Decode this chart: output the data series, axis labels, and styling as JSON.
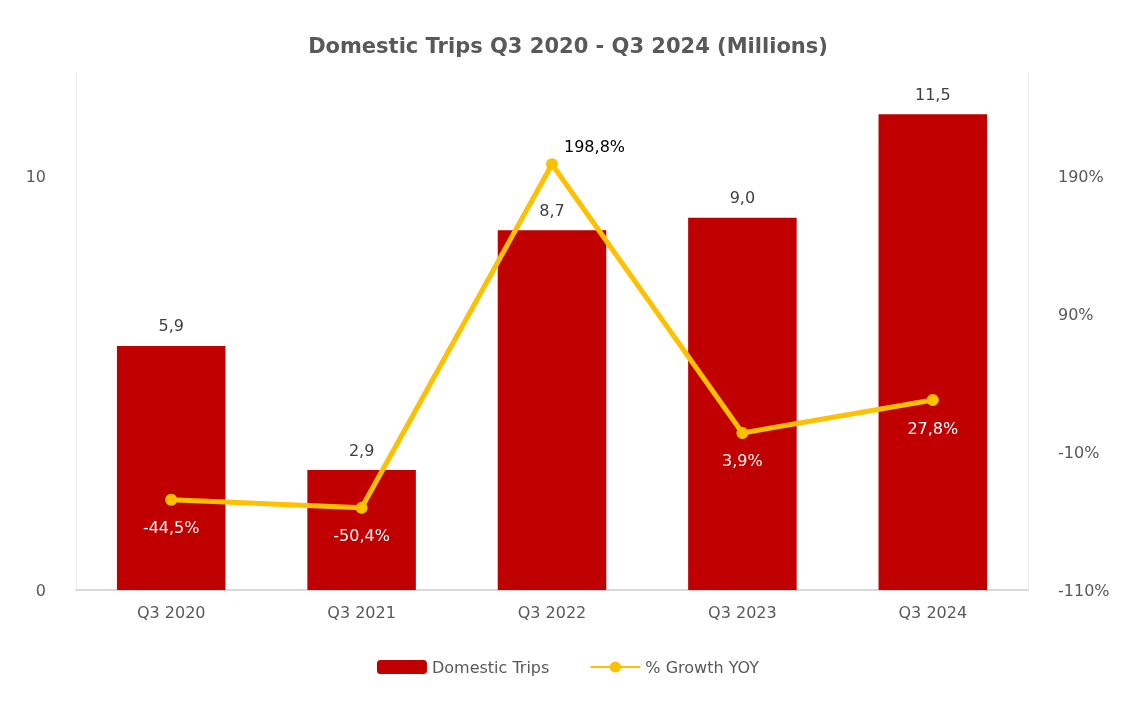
{
  "chart_data": {
    "type": "bar",
    "title": "Domestic Trips Q3 2020 - Q3 2024 (Millions)",
    "categories": [
      "Q3 2020",
      "Q3 2021",
      "Q3 2022",
      "Q3 2023",
      "Q3 2024"
    ],
    "series": [
      {
        "name": "Domestic Trips",
        "color": "#c00000",
        "values": [
          5.9,
          2.9,
          8.7,
          9.0,
          11.5
        ],
        "value_labels": [
          "5,9",
          "2,9",
          "8,7",
          "9,0",
          "11,5"
        ]
      },
      {
        "name": "% Growth YOY",
        "type": "line",
        "axis": "y2",
        "color": "#ffc000",
        "marker": "circle",
        "values": [
          -44.5,
          -50.4,
          198.8,
          3.9,
          27.8
        ],
        "value_labels": [
          "-44,5%",
          "-50,4%",
          "198,8%",
          "3,9%",
          "27,8%"
        ]
      }
    ],
    "ylim": [
      0,
      12.5
    ],
    "yticks": [
      0,
      10
    ],
    "y2lim": [
      -110,
      265
    ],
    "y2ticks": [
      {
        "value": -110,
        "label": "-110%"
      },
      {
        "value": -10,
        "label": "-10%"
      },
      {
        "value": 90,
        "label": "90%"
      },
      {
        "value": 190,
        "label": "190%"
      }
    ],
    "grid": false,
    "legend": "bottom"
  }
}
